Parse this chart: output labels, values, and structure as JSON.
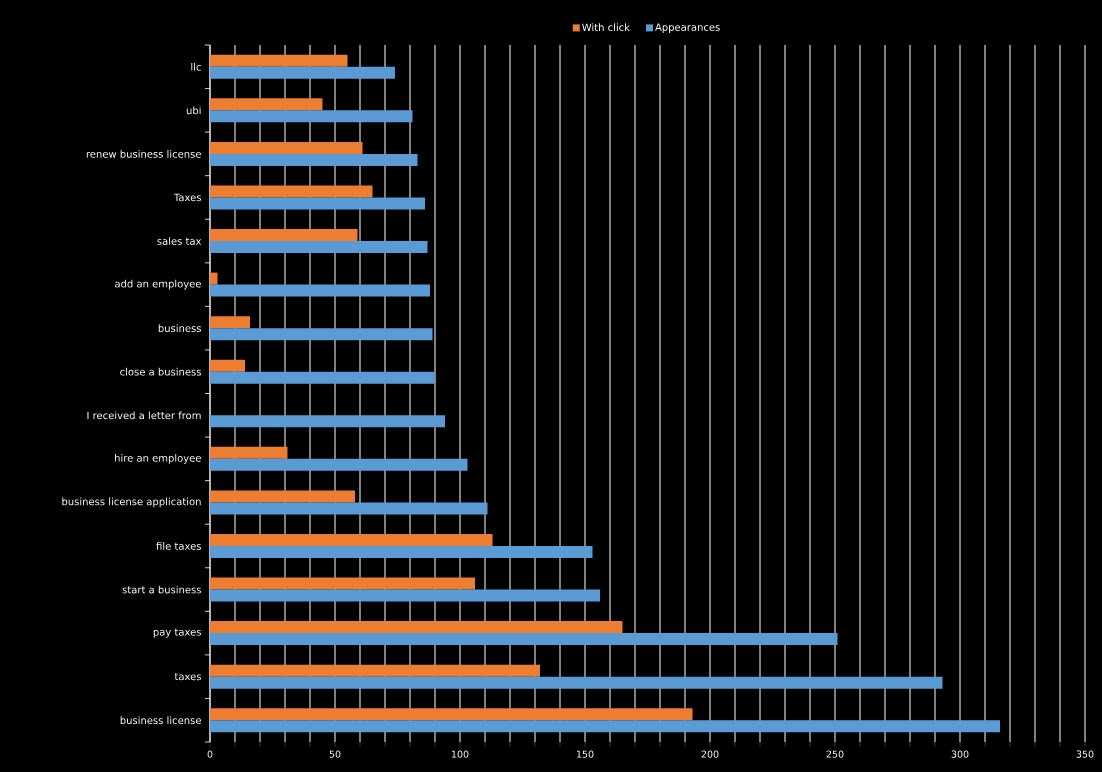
{
  "chart_data": {
    "type": "bar",
    "orientation": "horizontal",
    "categories": [
      "llc",
      "ubi",
      "renew business license",
      "Taxes",
      "sales tax",
      "add an employee",
      "business",
      "close a business",
      "I received a letter from",
      "hire an employee",
      "business license application",
      "file taxes",
      "start a business",
      "pay taxes",
      "taxes",
      "business license"
    ],
    "series": [
      {
        "name": "With click",
        "color": "#ed7d31",
        "values": [
          55,
          45,
          61,
          65,
          59,
          3,
          16,
          14,
          0,
          31,
          58,
          113,
          106,
          165,
          132,
          193
        ]
      },
      {
        "name": "Appearances",
        "color": "#5b9bd5",
        "values": [
          74,
          81,
          83,
          86,
          87,
          88,
          89,
          90,
          94,
          103,
          111,
          153,
          156,
          251,
          293,
          316
        ]
      }
    ],
    "xlim": [
      0,
      350
    ],
    "xticks": [
      0,
      {
        "value": 10,
        "label": null
      },
      {
        "value": 20,
        "label": null
      },
      {
        "value": 30,
        "label": null
      },
      {
        "value": 40,
        "label": null
      },
      50,
      {
        "value": 60,
        "label": null
      },
      {
        "value": 70,
        "label": null
      },
      {
        "value": 80,
        "label": null
      },
      {
        "value": 90,
        "label": null
      },
      100,
      {
        "value": 110,
        "label": null
      },
      {
        "value": 120,
        "label": null
      },
      {
        "value": 130,
        "label": null
      },
      {
        "value": 140,
        "label": null
      },
      150,
      {
        "value": 160,
        "label": null
      },
      {
        "value": 170,
        "label": null
      },
      {
        "value": 180,
        "label": null
      },
      {
        "value": 190,
        "label": null
      },
      200,
      {
        "value": 210,
        "label": null
      },
      {
        "value": 220,
        "label": null
      },
      {
        "value": 230,
        "label": null
      },
      {
        "value": 240,
        "label": null
      },
      250,
      {
        "value": 260,
        "label": null
      },
      {
        "value": 270,
        "label": null
      },
      {
        "value": 280,
        "label": null
      },
      {
        "value": 290,
        "label": null
      },
      300,
      {
        "value": 310,
        "label": null
      },
      {
        "value": 320,
        "label": null
      },
      {
        "value": 330,
        "label": null
      },
      {
        "value": 340,
        "label": null
      },
      350
    ],
    "grid": "x",
    "legend": "top"
  }
}
